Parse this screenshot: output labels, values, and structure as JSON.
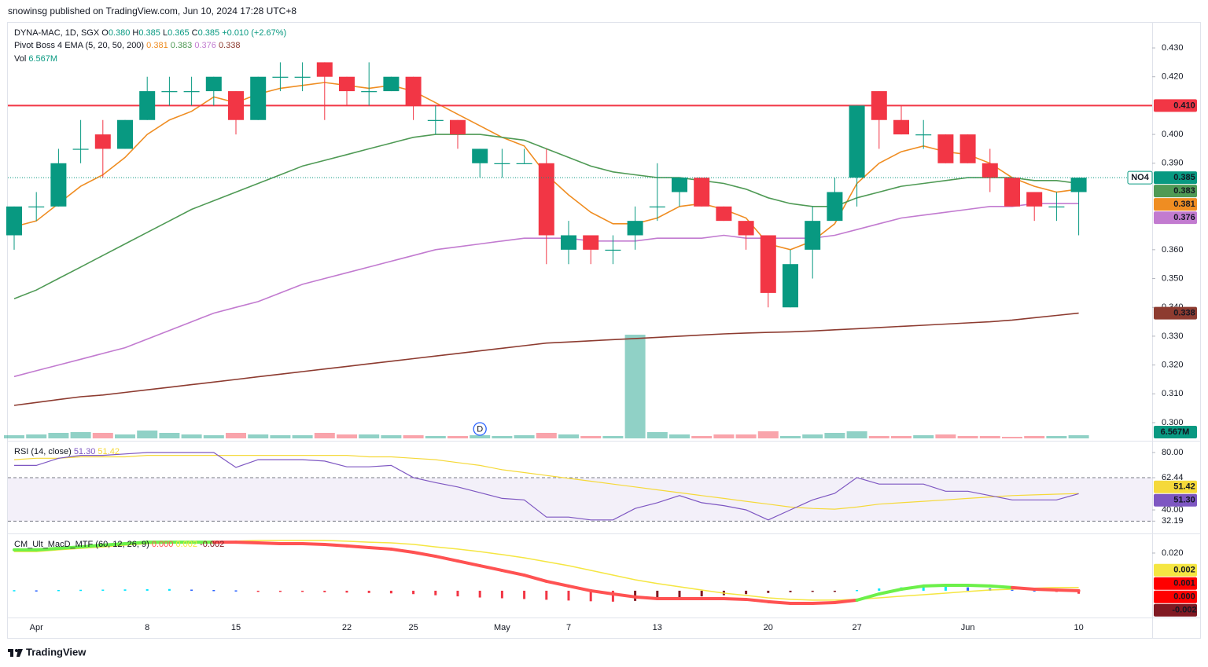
{
  "header": {
    "published": "snowinsg published on TradingView.com, Jun 10, 2024 17:28 UTC+8"
  },
  "footer": {
    "brand": "TradingView"
  },
  "chart_data": [
    {
      "type": "candlestick",
      "legend": {
        "symbol": "DYNA-MAC, 1D, SGX",
        "items": [
          {
            "label": "O",
            "value": "0.380"
          },
          {
            "label": "H",
            "value": "0.385"
          },
          {
            "label": "L",
            "value": "0.365"
          },
          {
            "label": "C",
            "value": "0.385"
          }
        ],
        "change": "+0.010 (+2.67%)",
        "indicator": "Pivot Boss 4 EMA (5, 20, 50, 200)"
      },
      "categories": [
        null,
        "Apr",
        null,
        null,
        null,
        null,
        "8",
        null,
        null,
        null,
        "15",
        null,
        null,
        null,
        null,
        "22",
        null,
        null,
        "25",
        null,
        null,
        null,
        "May",
        null,
        null,
        "7",
        null,
        null,
        null,
        "13",
        null,
        null,
        null,
        null,
        "20",
        null,
        null,
        null,
        "27",
        null,
        null,
        null,
        null,
        "Jun",
        null,
        null,
        null,
        null,
        "10"
      ],
      "open": [
        0.365,
        0.375,
        0.375,
        0.395,
        0.4,
        0.395,
        0.405,
        0.415,
        0.415,
        0.415,
        0.415,
        0.405,
        0.42,
        0.42,
        0.425,
        0.42,
        0.415,
        0.415,
        0.42,
        0.405,
        0.405,
        0.39,
        0.39,
        0.39,
        0.39,
        0.36,
        0.365,
        0.36,
        0.365,
        0.375,
        0.38,
        0.385,
        0.375,
        0.37,
        0.365,
        0.34,
        0.36,
        0.37,
        0.385,
        0.415,
        0.405,
        0.4,
        0.4,
        0.4,
        0.39,
        0.385,
        0.38,
        0.375,
        0.38
      ],
      "high": [
        0.375,
        0.38,
        0.395,
        0.405,
        0.405,
        0.405,
        0.42,
        0.42,
        0.42,
        0.42,
        0.415,
        0.42,
        0.425,
        0.425,
        0.425,
        0.42,
        0.425,
        0.42,
        0.42,
        0.41,
        0.405,
        0.395,
        0.395,
        0.395,
        0.395,
        0.37,
        0.365,
        0.365,
        0.375,
        0.39,
        0.385,
        0.385,
        0.375,
        0.37,
        0.365,
        0.36,
        0.375,
        0.385,
        0.41,
        0.415,
        0.41,
        0.405,
        0.4,
        0.4,
        0.395,
        0.385,
        0.38,
        0.38,
        0.385
      ],
      "low": [
        0.36,
        0.37,
        0.375,
        0.39,
        0.385,
        0.395,
        0.405,
        0.41,
        0.41,
        0.41,
        0.4,
        0.405,
        0.415,
        0.415,
        0.405,
        0.41,
        0.41,
        0.415,
        0.405,
        0.4,
        0.395,
        0.385,
        0.385,
        0.39,
        0.355,
        0.355,
        0.355,
        0.355,
        0.36,
        0.37,
        0.375,
        0.375,
        0.37,
        0.36,
        0.34,
        0.34,
        0.35,
        0.37,
        0.375,
        0.395,
        0.4,
        0.395,
        0.39,
        0.39,
        0.38,
        0.375,
        0.37,
        0.37,
        0.365
      ],
      "close": [
        0.375,
        0.375,
        0.39,
        0.395,
        0.395,
        0.405,
        0.415,
        0.415,
        0.415,
        0.42,
        0.405,
        0.42,
        0.42,
        0.42,
        0.42,
        0.415,
        0.415,
        0.42,
        0.41,
        0.405,
        0.4,
        0.395,
        0.39,
        0.39,
        0.365,
        0.365,
        0.36,
        0.36,
        0.37,
        0.375,
        0.385,
        0.375,
        0.37,
        0.365,
        0.345,
        0.355,
        0.37,
        0.38,
        0.41,
        0.405,
        0.4,
        0.4,
        0.39,
        0.39,
        0.385,
        0.375,
        0.375,
        0.375,
        0.385
      ],
      "colors": {
        "up": "#089981",
        "down": "#f23645"
      },
      "ylim": [
        0.294,
        0.439
      ],
      "yticks": [
        {
          "value": 0.3,
          "label": "0.300"
        },
        {
          "value": 0.31,
          "label": "0.310"
        },
        {
          "value": 0.32,
          "label": "0.320"
        },
        {
          "value": 0.33,
          "label": "0.330"
        },
        {
          "value": 0.34,
          "label": "0.340"
        },
        {
          "value": 0.35,
          "label": "0.350"
        },
        {
          "value": 0.36,
          "label": "0.360"
        },
        {
          "value": 0.39,
          "label": "0.390"
        },
        {
          "value": 0.4,
          "label": "0.400"
        },
        {
          "value": 0.42,
          "label": "0.420"
        },
        {
          "value": 0.43,
          "label": "0.430"
        }
      ],
      "series": [
        {
          "color": "#ef8d22",
          "last_label": "0.381",
          "values": [
            0.368,
            0.37,
            0.376,
            0.382,
            0.386,
            0.392,
            0.4,
            0.405,
            0.408,
            0.413,
            0.411,
            0.414,
            0.416,
            0.417,
            0.418,
            0.417,
            0.416,
            0.417,
            0.415,
            0.411,
            0.407,
            0.403,
            0.399,
            0.396,
            0.386,
            0.379,
            0.373,
            0.369,
            0.369,
            0.371,
            0.375,
            0.376,
            0.374,
            0.371,
            0.362,
            0.36,
            0.363,
            0.369,
            0.383,
            0.39,
            0.394,
            0.396,
            0.394,
            0.393,
            0.39,
            0.385,
            0.382,
            0.38,
            0.381
          ]
        },
        {
          "color": "#4f9a55",
          "last_label": "0.383",
          "values": [
            0.343,
            0.346,
            0.35,
            0.354,
            0.358,
            0.362,
            0.366,
            0.37,
            0.374,
            0.377,
            0.38,
            0.383,
            0.386,
            0.389,
            0.391,
            0.393,
            0.395,
            0.397,
            0.399,
            0.4,
            0.4,
            0.4,
            0.399,
            0.398,
            0.395,
            0.392,
            0.389,
            0.387,
            0.386,
            0.385,
            0.385,
            0.384,
            0.383,
            0.381,
            0.378,
            0.376,
            0.375,
            0.375,
            0.378,
            0.38,
            0.382,
            0.383,
            0.384,
            0.385,
            0.385,
            0.385,
            0.384,
            0.384,
            0.383
          ]
        },
        {
          "color": "#c27bd0",
          "last_label": "0.376",
          "values": [
            0.316,
            0.318,
            0.32,
            0.322,
            0.324,
            0.326,
            0.329,
            0.332,
            0.335,
            0.338,
            0.34,
            0.342,
            0.345,
            0.348,
            0.35,
            0.352,
            0.354,
            0.356,
            0.358,
            0.36,
            0.361,
            0.362,
            0.363,
            0.364,
            0.364,
            0.364,
            0.363,
            0.363,
            0.363,
            0.364,
            0.364,
            0.364,
            0.365,
            0.364,
            0.364,
            0.364,
            0.364,
            0.365,
            0.367,
            0.369,
            0.371,
            0.372,
            0.373,
            0.374,
            0.375,
            0.375,
            0.376,
            0.376,
            0.376
          ]
        },
        {
          "color": "#8d3b30",
          "last_label": "0.338",
          "values": [
            0.306,
            0.307,
            0.308,
            0.309,
            0.3096,
            0.3105,
            0.3114,
            0.3123,
            0.3132,
            0.3141,
            0.315,
            0.3159,
            0.3168,
            0.3177,
            0.3186,
            0.3195,
            0.3204,
            0.3213,
            0.3222,
            0.3231,
            0.324,
            0.3249,
            0.3258,
            0.3267,
            0.3276,
            0.328,
            0.3284,
            0.3288,
            0.3292,
            0.3296,
            0.33,
            0.3304,
            0.3308,
            0.3311,
            0.3313,
            0.3315,
            0.3318,
            0.3322,
            0.3326,
            0.333,
            0.3334,
            0.3338,
            0.3342,
            0.3346,
            0.335,
            0.3356,
            0.3364,
            0.3372,
            0.338
          ]
        }
      ],
      "hline": {
        "value": 0.41,
        "label": "0.410",
        "color": "#f23645"
      },
      "last_price": {
        "value": 0.385,
        "tag": "NO4",
        "label": "0.385"
      },
      "volume": {
        "title": "Vol",
        "last_label": "6.567M",
        "values": [
          6.6,
          8.2,
          11.5,
          13.1,
          11.5,
          8.2,
          16.4,
          11.5,
          8.2,
          6.6,
          11.5,
          8.2,
          6.6,
          6.6,
          11.5,
          8.2,
          8.2,
          6.6,
          6.6,
          4.9,
          4.9,
          6.6,
          4.9,
          6.6,
          11.5,
          8.2,
          4.9,
          4.9,
          216.5,
          13.1,
          8.2,
          4.9,
          8.2,
          8.2,
          14.8,
          4.9,
          8.2,
          11.5,
          14.8,
          4.9,
          4.9,
          6.6,
          8.2,
          4.9,
          4.9,
          3.3,
          4.9,
          4.9,
          6.567
        ]
      },
      "dividend_markers": [
        null,
        null,
        null,
        null,
        null,
        null,
        null,
        null,
        null,
        null,
        null,
        null,
        null,
        null,
        null,
        null,
        null,
        null,
        null,
        null,
        null,
        "D",
        null,
        null,
        null,
        null,
        null,
        null,
        null,
        null,
        null,
        null,
        null,
        null,
        null,
        null,
        null,
        null,
        null,
        null,
        null,
        null,
        null,
        null,
        null,
        null,
        null,
        null,
        null
      ]
    },
    {
      "type": "line",
      "title": "RSI (14, close)",
      "ylim": [
        24.7,
        87.1
      ],
      "yticks": [
        {
          "value": 80,
          "label": "80.00"
        },
        {
          "value": 62.44,
          "label": "62.44"
        },
        {
          "value": 40,
          "label": "40.00"
        },
        {
          "value": 32.19,
          "label": "32.19"
        }
      ],
      "band_color": "#7e57c2",
      "series": [
        {
          "color": "#7e57c2",
          "last_label": "51.30",
          "values": [
            71,
            71,
            76,
            78,
            78,
            79,
            80,
            80,
            80,
            80,
            69.6,
            75,
            75,
            75,
            74,
            70,
            70,
            71,
            62.5,
            59,
            56,
            52,
            48,
            47,
            35,
            35,
            33,
            33,
            41,
            45,
            50,
            45,
            43,
            40,
            33,
            40,
            47,
            51.5,
            62.5,
            58,
            58,
            58,
            53,
            53,
            50,
            47,
            47,
            47,
            51.3
          ]
        },
        {
          "color": "#f5d93a",
          "last_label": "51.42",
          "values": [
            75,
            76,
            76,
            77,
            77,
            77,
            78,
            78,
            78,
            78,
            78,
            78,
            78,
            78,
            78,
            78,
            77,
            77,
            76,
            75,
            73,
            71,
            68,
            66,
            64,
            62,
            60,
            58,
            56,
            54,
            52,
            50,
            48,
            46,
            44,
            42,
            41,
            40.5,
            42,
            44,
            45,
            46,
            47,
            48,
            49,
            50,
            50.5,
            51,
            51.42
          ]
        }
      ]
    },
    {
      "type": "macd",
      "title": "CM_Ult_MacD_MTF (60, 12, 26, 9)",
      "ylim": [
        -0.0138,
        0.03
      ],
      "yticks": [
        {
          "value": 0.02,
          "label": "0.020"
        }
      ],
      "macd": {
        "color": "#ff5252",
        "above_color": "#6cf04a",
        "last_label": "0.000",
        "values": [
          0.0217,
          0.0217,
          0.0225,
          0.0233,
          0.0242,
          0.025,
          0.0258,
          0.0258,
          0.0258,
          0.0258,
          0.0258,
          0.0254,
          0.025,
          0.025,
          0.0246,
          0.0238,
          0.0229,
          0.0221,
          0.0204,
          0.0183,
          0.0158,
          0.0133,
          0.0108,
          0.0083,
          0.005,
          0.0025,
          0,
          -0.0017,
          -0.0033,
          -0.0042,
          -0.0042,
          -0.0042,
          -0.0042,
          -0.0046,
          -0.0058,
          -0.0067,
          -0.0067,
          -0.0063,
          -0.005,
          -0.0017,
          0.0008,
          0.0025,
          0.0029,
          0.0029,
          0.0025,
          0.0017,
          0.0008,
          0.0004,
          0
        ]
      },
      "signal": {
        "color": "#f5e642",
        "last_label": "0.002",
        "values": [
          0.0208,
          0.0208,
          0.0217,
          0.0225,
          0.0233,
          0.0242,
          0.025,
          0.0254,
          0.0258,
          0.0258,
          0.0263,
          0.0267,
          0.0267,
          0.0267,
          0.0267,
          0.0263,
          0.0258,
          0.0254,
          0.0246,
          0.0233,
          0.0221,
          0.0208,
          0.0192,
          0.0175,
          0.0154,
          0.0133,
          0.0108,
          0.0083,
          0.0058,
          0.0038,
          0.0021,
          0.0004,
          -0.0013,
          -0.0025,
          -0.0038,
          -0.0046,
          -0.005,
          -0.005,
          -0.0046,
          -0.0038,
          -0.0029,
          -0.0021,
          -0.0013,
          -0.0004,
          0.0004,
          0.0008,
          0.0013,
          0.0017,
          0.0017
        ]
      },
      "histogram": {
        "color": "#801922",
        "last_label": "-0.002",
        "palette": {
          "above_rising": "#00e5ff",
          "above_falling": "#2962ff",
          "below_falling": "#f23645",
          "below_rising": "#801922"
        },
        "values": [
          0.0003,
          0.0002,
          0.0004,
          0.0005,
          0.0006,
          0.0007,
          0.0008,
          0.0009,
          0.0006,
          0.0004,
          0.0002,
          -0.0002,
          -0.0004,
          -0.0006,
          -0.0008,
          -0.001,
          -0.0012,
          -0.0014,
          -0.0018,
          -0.0024,
          -0.003,
          -0.0036,
          -0.004,
          -0.0044,
          -0.0048,
          -0.0052,
          -0.0056,
          -0.0058,
          -0.0054,
          -0.0046,
          -0.0038,
          -0.003,
          -0.0024,
          -0.0018,
          -0.0012,
          -0.0008,
          -0.0004,
          -0.0002,
          0.0004,
          0.0012,
          0.0018,
          0.0022,
          0.0022,
          0.0018,
          0.0012,
          0.0006,
          0.0002,
          -0.0004,
          -0.0016
        ]
      },
      "extra_label": {
        "value": 0.001,
        "label": "0.001",
        "color": "#ff0000"
      }
    }
  ]
}
